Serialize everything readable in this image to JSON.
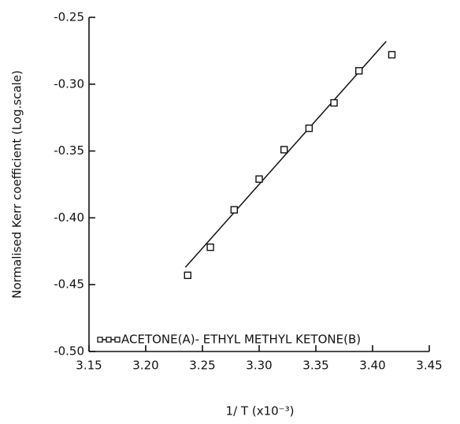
{
  "chart_data": {
    "type": "scatter",
    "xlabel": "1/ T (x10⁻³)",
    "ylabel": "Normalised  Kerr coefficient (Log.scale)",
    "xlim": [
      3.15,
      3.45
    ],
    "ylim": [
      -0.5,
      -0.25
    ],
    "xticks": [
      3.15,
      {
        "value": 3.2,
        "label": "3.20"
      },
      3.25,
      {
        "value": 3.3,
        "label": "3.30"
      },
      3.35,
      {
        "value": 3.4,
        "label": "3.40"
      },
      3.45
    ],
    "yticks": [
      -0.25,
      {
        "value": -0.3,
        "label": "-0.30"
      },
      -0.35,
      {
        "value": -0.4,
        "label": "-0.40"
      },
      -0.45,
      {
        "value": -0.5,
        "label": "-0.50"
      }
    ],
    "series": [
      {
        "name": "ACETONE(A)- ETHYL METHYL KETONE(B)",
        "color": "#111111",
        "x": [
          3.237,
          3.257,
          3.278,
          3.3,
          3.322,
          3.344,
          3.366,
          3.388,
          3.417
        ],
        "values": [
          -0.443,
          -0.422,
          -0.394,
          -0.371,
          -0.349,
          -0.333,
          -0.314,
          -0.29,
          -0.278
        ]
      }
    ],
    "fit": {
      "x": [
        3.235,
        3.412
      ],
      "values": [
        -0.437,
        -0.268
      ]
    }
  }
}
